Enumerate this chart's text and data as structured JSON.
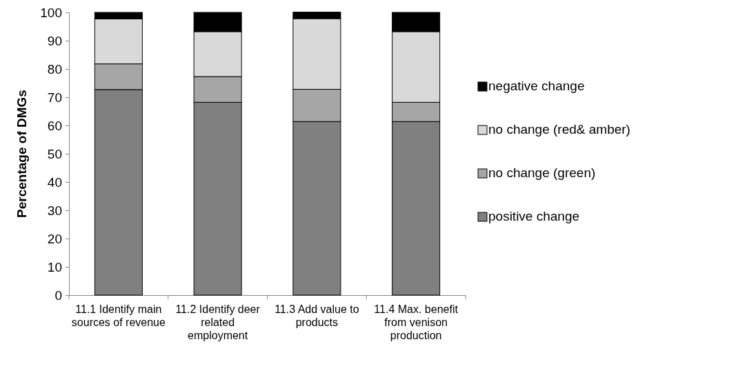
{
  "chart_data": {
    "type": "bar",
    "stacked": true,
    "ylabel": "Percentage of DMGs",
    "categories": [
      "11.1 Identify main sources of revenue",
      "11.2 Identify deer related employment",
      "11.3 Add value to products",
      "11.4 Max. benefit from venison production"
    ],
    "series": [
      {
        "name": "positive change",
        "color": "#808080",
        "values": [
          72.7,
          68.2,
          61.4,
          61.4
        ]
      },
      {
        "name": "no change (green)",
        "color": "#a6a6a6",
        "values": [
          9.1,
          9.1,
          11.4,
          6.8
        ]
      },
      {
        "name": "no change (red& amber)",
        "color": "#d9d9d9",
        "values": [
          15.9,
          15.9,
          25.0,
          25.0
        ]
      },
      {
        "name": "negative change",
        "color": "#000000",
        "values": [
          2.3,
          6.8,
          2.3,
          6.8
        ]
      }
    ],
    "ylim": [
      0,
      100
    ],
    "yticks": [
      0,
      10,
      20,
      30,
      40,
      50,
      60,
      70,
      80,
      90,
      100
    ],
    "legend": "right",
    "grid": false
  }
}
